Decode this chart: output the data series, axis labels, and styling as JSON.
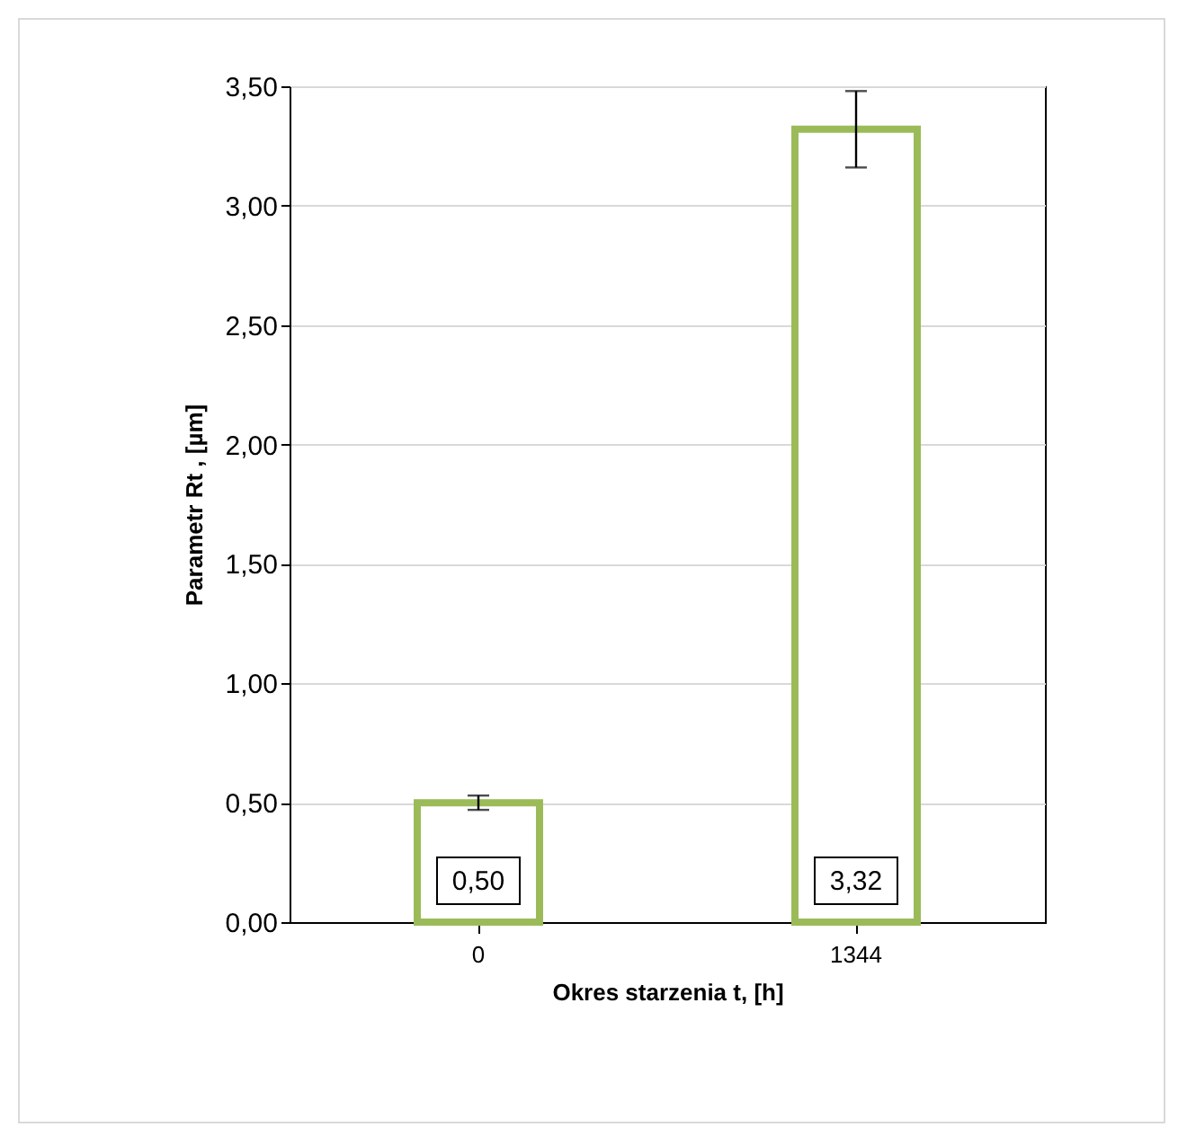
{
  "chart_data": {
    "type": "bar",
    "xlabel": "Okres starzenia t, [h]",
    "ylabel": "Parametr Rt , [µm]",
    "categories": [
      "0",
      "1344"
    ],
    "series": [
      {
        "color": "#9bbb59",
        "values": [
          0.5,
          3.32
        ],
        "errors": [
          0.03,
          0.16
        ],
        "value_labels": [
          "0,50",
          "3,32"
        ]
      }
    ],
    "ylim": [
      0,
      3.5
    ],
    "yticks": [
      {
        "value": 0,
        "label": "0,00"
      },
      {
        "value": 0.5,
        "label": "0,50"
      },
      {
        "value": 1,
        "label": "1,00"
      },
      {
        "value": 1.5,
        "label": "1,50"
      },
      {
        "value": 2,
        "label": "2,00"
      },
      {
        "value": 2.5,
        "label": "2,50"
      },
      {
        "value": 3,
        "label": "3,00"
      },
      {
        "value": 3.5,
        "label": "3,50"
      }
    ],
    "grid": "y"
  }
}
